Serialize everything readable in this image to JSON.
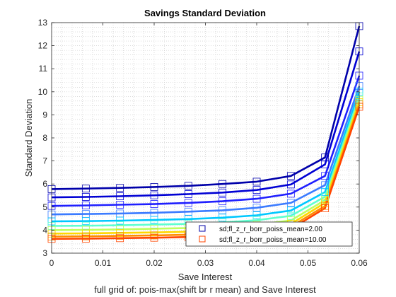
{
  "chart_data": {
    "type": "line",
    "title": "Savings Standard Deviation",
    "xlabel": "Save Interest",
    "ylabel": "Standard Deviation",
    "caption": "full grid of: pois-max(shift br r mean) and Save Interest",
    "xlim": [
      0,
      0.06
    ],
    "ylim": [
      3,
      13
    ],
    "x_ticks": [
      "0",
      "0.01",
      "0.02",
      "0.03",
      "0.04",
      "0.05",
      "0.06"
    ],
    "y_ticks": [
      "3",
      "4",
      "5",
      "6",
      "7",
      "8",
      "9",
      "10",
      "11",
      "12",
      "13"
    ],
    "grid": "minor dotted",
    "legend_position": "bottom-right",
    "x": [
      0,
      0.00667,
      0.01333,
      0.02,
      0.02667,
      0.03333,
      0.04,
      0.04667,
      0.05333,
      0.06
    ],
    "series": [
      {
        "name": "sd;fl_z_r_borr_poiss_mean=2.00",
        "color": "#0000aa",
        "values": [
          5.78,
          5.8,
          5.83,
          5.87,
          5.92,
          6.0,
          6.1,
          6.35,
          7.15,
          12.85
        ]
      },
      {
        "color": "#0000d4",
        "values": [
          5.42,
          5.44,
          5.47,
          5.51,
          5.56,
          5.63,
          5.74,
          5.98,
          6.85,
          11.75
        ]
      },
      {
        "color": "#1f1fff",
        "values": [
          5.05,
          5.07,
          5.1,
          5.13,
          5.18,
          5.25,
          5.36,
          5.58,
          6.35,
          10.7
        ]
      },
      {
        "color": "#3b7bff",
        "values": [
          4.68,
          4.7,
          4.72,
          4.75,
          4.8,
          4.86,
          4.97,
          5.18,
          5.95,
          10.25
        ]
      },
      {
        "color": "#00c8ff",
        "values": [
          4.38,
          4.39,
          4.41,
          4.44,
          4.48,
          4.54,
          4.64,
          4.85,
          5.65,
          10.0
        ]
      },
      {
        "color": "#5fffcf",
        "values": [
          4.18,
          4.19,
          4.21,
          4.24,
          4.27,
          4.33,
          4.43,
          4.62,
          5.45,
          9.8
        ]
      },
      {
        "color": "#bfff5f",
        "values": [
          4.0,
          4.01,
          4.03,
          4.06,
          4.09,
          4.14,
          4.23,
          4.42,
          5.3,
          9.65
        ]
      },
      {
        "color": "#ffd700",
        "values": [
          3.85,
          3.86,
          3.88,
          3.9,
          3.93,
          3.98,
          4.07,
          4.27,
          5.18,
          9.55
        ]
      },
      {
        "color": "#ff8c00",
        "values": [
          3.72,
          3.73,
          3.75,
          3.77,
          3.8,
          3.85,
          3.95,
          4.15,
          5.05,
          9.45
        ]
      },
      {
        "name": "sd;fl_z_r_borr_poiss_mean=10.00",
        "color": "#ff4500",
        "values": [
          3.62,
          3.63,
          3.65,
          3.67,
          3.7,
          3.75,
          3.85,
          4.05,
          4.95,
          9.35
        ]
      }
    ],
    "legend": [
      {
        "label": "sd;fl_z_r_borr_poiss_mean=2.00",
        "color": "#0000aa"
      },
      {
        "label": "sd;fl_z_r_borr_poiss_mean=10.00",
        "color": "#ff4500"
      }
    ]
  }
}
